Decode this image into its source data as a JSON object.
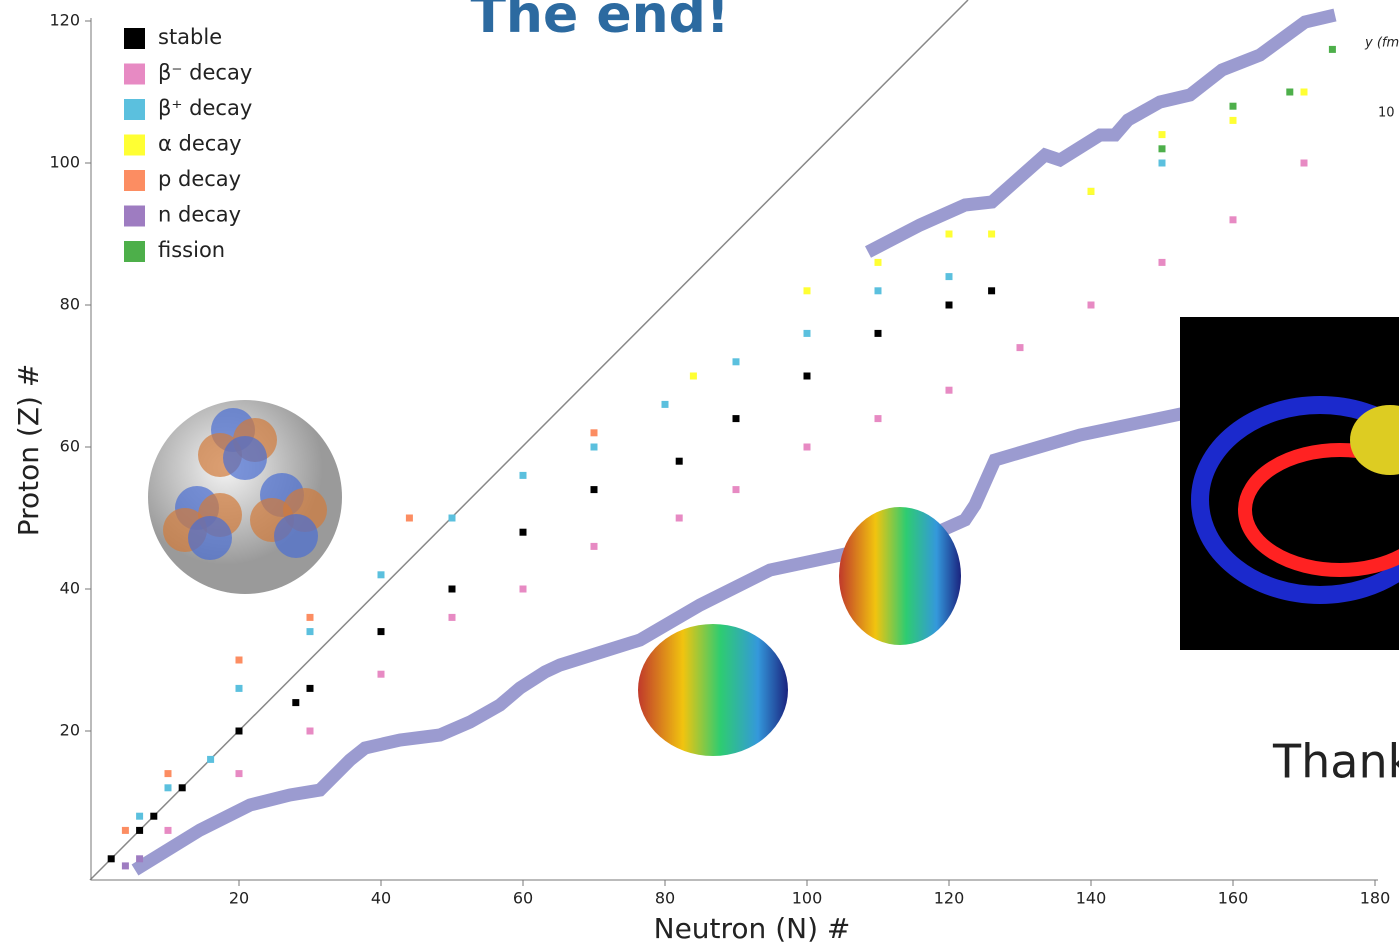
{
  "chart_data": {
    "type": "scatter",
    "title": "The end!",
    "closing_text": "Thank",
    "side_label": "y (fm",
    "side_tick": "10",
    "xlabel": "Neutron (N) #",
    "ylabel": "Proton (Z) #",
    "xlim": [
      0,
      180
    ],
    "ylim": [
      0,
      120
    ],
    "xticks": [
      20,
      40,
      60,
      80,
      100,
      120,
      140,
      160,
      180
    ],
    "yticks": [
      20,
      40,
      60,
      80,
      100,
      120
    ],
    "series": [
      {
        "name": "stable",
        "color": "#000000",
        "x": [
          2,
          6,
          8,
          12,
          20,
          28,
          30,
          40,
          50,
          60,
          70,
          82,
          90,
          100,
          110,
          120,
          126
        ],
        "values": [
          2,
          6,
          8,
          12,
          20,
          24,
          26,
          34,
          40,
          48,
          54,
          58,
          64,
          70,
          76,
          80,
          82
        ]
      },
      {
        "name": "β⁻ decay",
        "color": "#e78ac3",
        "x": [
          10,
          20,
          30,
          40,
          50,
          60,
          70,
          82,
          90,
          100,
          110,
          120,
          130,
          140,
          150,
          160,
          170
        ],
        "values": [
          6,
          14,
          20,
          28,
          36,
          40,
          46,
          50,
          54,
          60,
          64,
          68,
          74,
          80,
          86,
          92,
          100
        ]
      },
      {
        "name": "β⁺ decay",
        "color": "#5bc0de",
        "x": [
          6,
          10,
          16,
          20,
          30,
          40,
          50,
          60,
          70,
          80,
          90,
          100,
          110,
          120,
          140,
          150
        ],
        "values": [
          8,
          12,
          16,
          26,
          34,
          42,
          50,
          56,
          60,
          66,
          72,
          76,
          82,
          84,
          96,
          100
        ]
      },
      {
        "name": "α decay",
        "color": "#ffff33",
        "x": [
          84,
          100,
          110,
          120,
          126,
          140,
          150,
          160,
          170
        ],
        "values": [
          70,
          82,
          86,
          90,
          90,
          96,
          104,
          106,
          110
        ]
      },
      {
        "name": "p decay",
        "color": "#fc8d62",
        "x": [
          4,
          10,
          20,
          30,
          44,
          70
        ],
        "values": [
          6,
          14,
          30,
          36,
          50,
          62
        ]
      },
      {
        "name": "n decay",
        "color": "#9e7cc1",
        "x": [
          4,
          6
        ],
        "values": [
          1,
          2
        ]
      },
      {
        "name": "fission",
        "color": "#4daf4a",
        "x": [
          150,
          160,
          168,
          174
        ],
        "values": [
          102,
          108,
          110,
          116
        ]
      }
    ]
  }
}
